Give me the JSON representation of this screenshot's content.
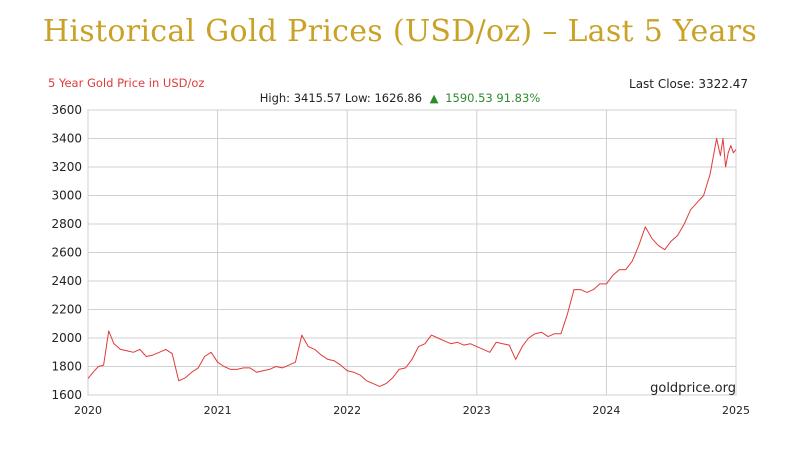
{
  "banner": {
    "title": "Historical Gold Prices (USD/oz) – Last 5 Years"
  },
  "chart_data": {
    "type": "line",
    "title": "5 Year Gold Price in USD/oz",
    "last_close_text": "Last Close: 3322.47",
    "stats": {
      "prefix": "High: 3415.57 Low: 1626.86",
      "change_arrow": "▲",
      "change": "1590.53 91.83%"
    },
    "watermark": "goldprice.org",
    "xlabel": "",
    "ylabel": "",
    "xlim": [
      2020,
      2025
    ],
    "ylim": [
      1600,
      3600
    ],
    "y_ticks": [
      1600,
      1800,
      2000,
      2200,
      2400,
      2600,
      2800,
      3000,
      3200,
      3400,
      3600
    ],
    "x_ticks": [
      2020,
      2021,
      2022,
      2023,
      2024,
      2025
    ],
    "grid": true,
    "colors": {
      "line": "#e03b3b",
      "title": "#e03b3b",
      "change": "#2e8b2e",
      "grid": "#d0d0d0",
      "banner": "#c9a227"
    },
    "series": [
      {
        "x": [
          2020.0,
          2020.04,
          2020.08,
          2020.12,
          2020.16,
          2020.2,
          2020.25,
          2020.3,
          2020.35,
          2020.4,
          2020.45,
          2020.5,
          2020.55,
          2020.6,
          2020.65,
          2020.7,
          2020.75,
          2020.8,
          2020.85,
          2020.9,
          2020.95,
          2021.0,
          2021.05,
          2021.1,
          2021.15,
          2021.2,
          2021.25,
          2021.3,
          2021.35,
          2021.4,
          2021.45,
          2021.5,
          2021.55,
          2021.6,
          2021.65,
          2021.7,
          2021.75,
          2021.8,
          2021.85,
          2021.9,
          2021.95,
          2022.0,
          2022.05,
          2022.1,
          2022.15,
          2022.2,
          2022.25,
          2022.3,
          2022.35,
          2022.4,
          2022.45,
          2022.5,
          2022.55,
          2022.6,
          2022.65,
          2022.7,
          2022.75,
          2022.8,
          2022.85,
          2022.9,
          2022.95,
          2023.0,
          2023.05,
          2023.1,
          2023.15,
          2023.2,
          2023.25,
          2023.3,
          2023.35,
          2023.4,
          2023.45,
          2023.5,
          2023.55,
          2023.6,
          2023.65,
          2023.7,
          2023.75,
          2023.8,
          2023.85,
          2023.9,
          2023.95,
          2024.0,
          2024.05,
          2024.1,
          2024.15,
          2024.2,
          2024.25,
          2024.3,
          2024.35,
          2024.4,
          2024.45,
          2024.5,
          2024.55,
          2024.6,
          2024.65,
          2024.7,
          2024.75,
          2024.8,
          2024.85,
          2024.88,
          2024.9,
          2024.92,
          2024.94,
          2024.96,
          2024.98,
          2025.0
        ],
        "values": [
          1715,
          1760,
          1800,
          1810,
          2050,
          1960,
          1920,
          1910,
          1900,
          1920,
          1870,
          1880,
          1900,
          1920,
          1890,
          1700,
          1720,
          1760,
          1790,
          1870,
          1900,
          1830,
          1800,
          1780,
          1780,
          1790,
          1790,
          1760,
          1770,
          1780,
          1800,
          1790,
          1810,
          1830,
          2020,
          1940,
          1920,
          1880,
          1850,
          1840,
          1810,
          1770,
          1760,
          1740,
          1700,
          1680,
          1660,
          1680,
          1720,
          1780,
          1790,
          1850,
          1940,
          1960,
          2020,
          2000,
          1980,
          1960,
          1970,
          1950,
          1960,
          1940,
          1920,
          1900,
          1970,
          1960,
          1950,
          1850,
          1940,
          2000,
          2030,
          2040,
          2010,
          2030,
          2030,
          2170,
          2340,
          2340,
          2320,
          2340,
          2380,
          2380,
          2440,
          2480,
          2480,
          2540,
          2650,
          2780,
          2700,
          2650,
          2620,
          2680,
          2720,
          2800,
          2900,
          2950,
          3000,
          3150,
          3400,
          3280,
          3400,
          3200,
          3300,
          3350,
          3300,
          3322
        ]
      }
    ]
  }
}
